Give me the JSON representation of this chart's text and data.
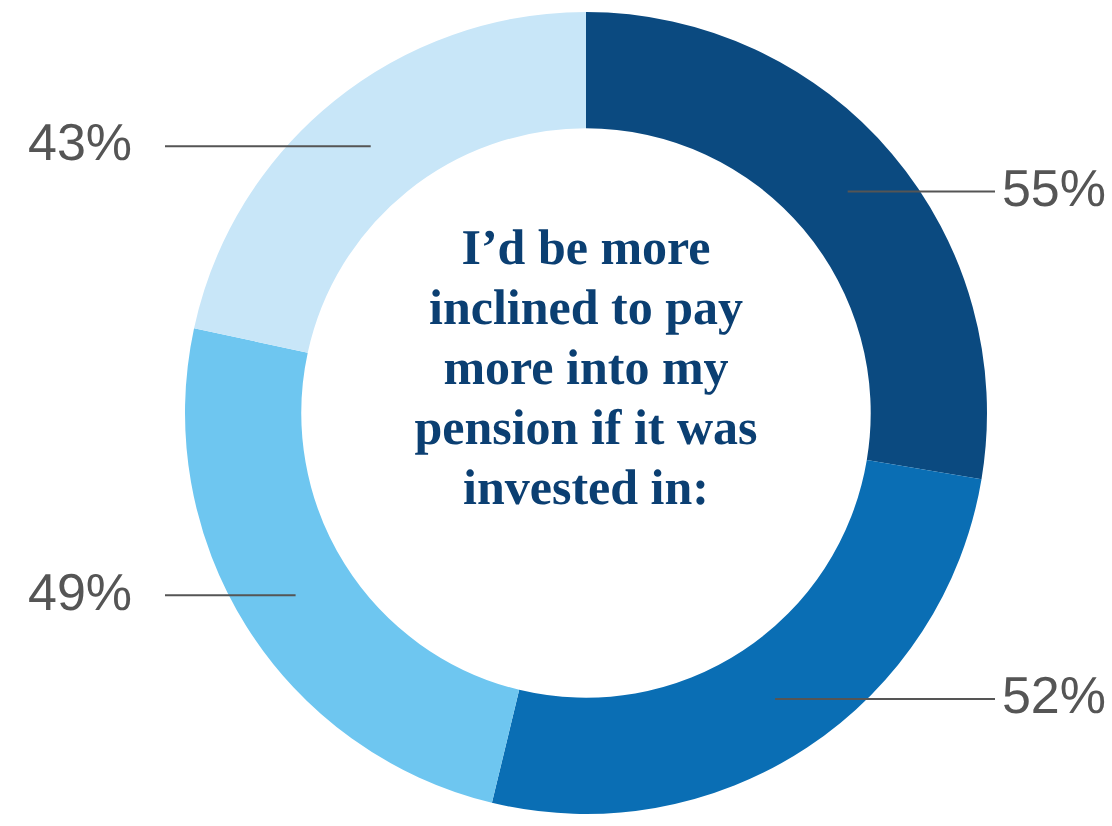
{
  "chart_data": {
    "type": "donut",
    "title": "I’d be more inclined to pay more into my pension if it was invested in:",
    "categories": [
      null,
      null,
      null,
      null
    ],
    "values": [
      55,
      52,
      49,
      43
    ],
    "colors": [
      "#0b4a80",
      "#0a6eb4",
      "#6ec6f0",
      "#c8e6f8"
    ],
    "value_labels": [
      "55%",
      "52%",
      "49%",
      "43%"
    ]
  }
}
